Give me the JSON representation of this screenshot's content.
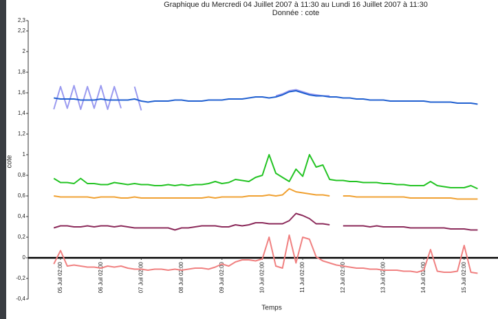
{
  "chart_data": {
    "type": "line",
    "title": "Graphique du Mercredi 04 Juillet 2007 à 11:30 au Lundi 16 Juillet 2007 à 11:30",
    "subtitle": "Donnée : cote",
    "ylabel": "cote",
    "xlabel": "Temps",
    "zero_line": true,
    "categories": [
      null,
      null,
      null,
      "05 Juil 02:00",
      null,
      null,
      null,
      null,
      null,
      "06 Juil 02:00",
      null,
      null,
      null,
      null,
      null,
      "07 Juil 02:00",
      null,
      null,
      null,
      null,
      null,
      "08 Juil 02:00",
      null,
      null,
      null,
      null,
      null,
      "09 Juil 02:00",
      null,
      null,
      null,
      null,
      null,
      "10 Juil 02:00",
      null,
      null,
      null,
      null,
      null,
      "11 Juil 02:00",
      null,
      null,
      null,
      null,
      null,
      "12 Juil 02:00",
      null,
      null,
      null,
      null,
      null,
      "13 Juil 02:00",
      null,
      null,
      null,
      null,
      null,
      "14 Juil 02:00",
      null,
      null,
      null,
      null,
      null,
      "15 Juil 02:00",
      null,
      null
    ],
    "ylim": [
      -0.4,
      2.3
    ],
    "yticks": [
      {
        "value": -0.4,
        "label": "-0,4"
      },
      {
        "value": -0.2,
        "label": "-0,2"
      },
      0,
      {
        "value": 0.2,
        "label": "0,2"
      },
      {
        "value": 0.4,
        "label": "0,4"
      },
      {
        "value": 0.6,
        "label": "0,6"
      },
      {
        "value": 0.8,
        "label": "0,8"
      },
      1,
      {
        "value": 1.2,
        "label": "1,2"
      },
      {
        "value": 1.4,
        "label": "1,4"
      },
      {
        "value": 1.6,
        "label": "1,6"
      },
      {
        "value": 1.8,
        "label": "1,8"
      },
      2,
      {
        "value": 2.2,
        "label": "2,2"
      },
      {
        "value": 2.3,
        "label": "2,3"
      }
    ],
    "series": [
      {
        "color": "#9a9af0",
        "values": [
          null,
          null,
          1.44,
          1.66,
          1.45,
          1.67,
          1.44,
          1.66,
          1.45,
          1.67,
          1.44,
          1.66,
          1.45,
          null,
          1.66,
          1.43,
          null,
          null,
          null,
          null,
          null,
          null,
          null,
          null,
          null,
          null,
          null,
          null,
          null,
          null,
          null,
          null,
          null,
          null,
          null,
          1.57,
          1.59,
          1.62,
          1.63,
          1.61,
          1.59,
          1.58,
          1.57,
          1.57,
          null,
          null,
          null,
          null,
          null,
          null,
          null,
          null,
          null,
          null,
          null,
          null,
          null,
          null,
          null,
          null,
          null,
          null,
          null,
          null,
          null,
          null
        ]
      },
      {
        "color": "#1f5fd0",
        "values": [
          null,
          null,
          1.55,
          1.54,
          1.54,
          1.54,
          1.53,
          1.53,
          1.53,
          1.54,
          1.53,
          1.53,
          1.53,
          1.53,
          1.54,
          1.52,
          1.51,
          1.52,
          1.52,
          1.52,
          1.53,
          1.53,
          1.52,
          1.52,
          1.52,
          1.53,
          1.53,
          1.53,
          1.54,
          1.54,
          1.54,
          1.55,
          1.56,
          1.56,
          1.55,
          1.56,
          1.58,
          1.61,
          1.62,
          1.6,
          1.58,
          1.57,
          1.57,
          1.56,
          1.56,
          1.55,
          1.55,
          1.54,
          1.54,
          1.53,
          1.53,
          1.53,
          1.52,
          1.52,
          1.52,
          1.52,
          1.52,
          1.52,
          1.51,
          1.51,
          1.51,
          1.51,
          1.5,
          1.5,
          1.5,
          1.49
        ]
      },
      {
        "color": "#22c322",
        "values": [
          null,
          null,
          0.77,
          0.73,
          0.73,
          0.72,
          0.77,
          0.72,
          0.72,
          0.71,
          0.71,
          0.73,
          0.72,
          0.71,
          0.72,
          0.71,
          0.71,
          0.7,
          0.7,
          0.71,
          0.7,
          0.71,
          0.7,
          0.71,
          0.71,
          0.72,
          0.74,
          0.72,
          0.73,
          0.76,
          0.75,
          0.74,
          0.78,
          0.8,
          1.0,
          0.82,
          0.78,
          0.74,
          0.86,
          0.79,
          1.0,
          0.88,
          0.9,
          0.76,
          0.75,
          0.75,
          0.74,
          0.74,
          0.73,
          0.73,
          0.73,
          0.72,
          0.72,
          0.71,
          0.71,
          0.7,
          0.7,
          0.7,
          0.74,
          0.7,
          0.69,
          0.68,
          0.68,
          0.68,
          0.7,
          0.67
        ]
      },
      {
        "color": "#f0a030",
        "values": [
          null,
          null,
          0.6,
          0.59,
          0.59,
          0.59,
          0.59,
          0.59,
          0.58,
          0.59,
          0.59,
          0.59,
          0.58,
          0.58,
          0.59,
          0.58,
          0.58,
          0.58,
          0.58,
          0.58,
          0.58,
          0.58,
          0.58,
          0.58,
          0.58,
          0.59,
          0.58,
          0.59,
          0.59,
          0.59,
          0.59,
          0.6,
          0.6,
          0.6,
          0.61,
          0.6,
          0.61,
          0.67,
          0.64,
          0.63,
          0.62,
          0.61,
          0.61,
          0.6,
          null,
          0.6,
          0.6,
          0.59,
          0.59,
          0.59,
          0.59,
          0.59,
          0.59,
          0.59,
          0.59,
          0.58,
          0.58,
          0.58,
          0.58,
          0.58,
          0.58,
          0.58,
          0.57,
          0.57,
          0.57,
          0.57
        ]
      },
      {
        "color": "#8b2a5a",
        "values": [
          null,
          null,
          0.29,
          0.31,
          0.31,
          0.3,
          0.3,
          0.31,
          0.3,
          0.31,
          0.31,
          0.3,
          0.31,
          0.3,
          0.29,
          0.29,
          0.29,
          0.29,
          0.29,
          0.29,
          0.27,
          0.29,
          0.29,
          0.3,
          0.31,
          0.31,
          0.31,
          0.3,
          0.3,
          0.32,
          0.31,
          0.32,
          0.34,
          0.34,
          0.33,
          0.33,
          0.33,
          0.36,
          0.43,
          0.41,
          0.38,
          0.33,
          0.33,
          0.32,
          null,
          0.31,
          0.31,
          0.31,
          0.31,
          0.3,
          0.31,
          0.3,
          0.3,
          0.3,
          0.3,
          0.29,
          0.29,
          0.29,
          0.29,
          0.29,
          0.29,
          0.28,
          0.28,
          0.28,
          0.27,
          0.27
        ]
      },
      {
        "color": "#f08080",
        "values": [
          null,
          null,
          -0.06,
          0.07,
          -0.08,
          -0.07,
          -0.08,
          -0.09,
          -0.09,
          -0.1,
          -0.08,
          -0.09,
          -0.08,
          -0.1,
          -0.11,
          -0.11,
          -0.12,
          -0.11,
          -0.11,
          -0.12,
          -0.11,
          -0.12,
          -0.11,
          -0.1,
          -0.1,
          -0.11,
          -0.09,
          -0.06,
          -0.08,
          -0.04,
          -0.02,
          -0.02,
          -0.03,
          -0.01,
          0.2,
          -0.08,
          -0.1,
          0.22,
          -0.05,
          0.2,
          0.18,
          0.01,
          -0.03,
          -0.05,
          -0.07,
          -0.08,
          -0.09,
          -0.1,
          -0.1,
          -0.11,
          -0.11,
          -0.12,
          -0.12,
          -0.12,
          -0.13,
          -0.13,
          -0.14,
          -0.12,
          0.08,
          -0.13,
          -0.14,
          -0.14,
          -0.13,
          0.12,
          -0.14,
          -0.15
        ]
      }
    ]
  }
}
